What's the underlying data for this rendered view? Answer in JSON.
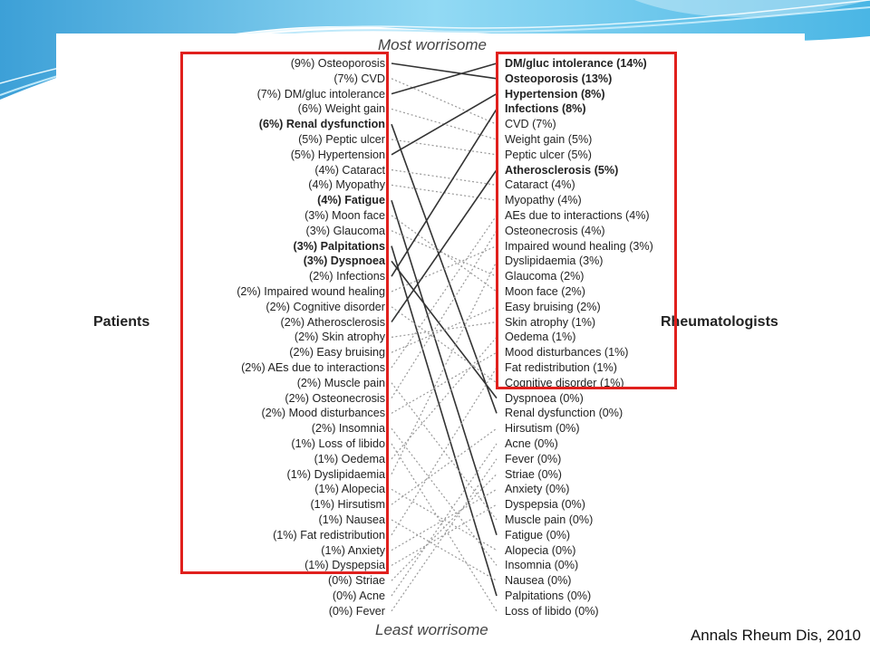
{
  "header": {
    "top": "Most worrisome",
    "bottom": "Least worrisome"
  },
  "side_labels": {
    "left": "Patients",
    "right": "Rheumatologists"
  },
  "citation": "Annals Rheum Dis, 2010",
  "colors": {
    "highlight_box": "#e0201d",
    "solid_line": "#333333",
    "dotted_line": "#999999",
    "header_wave": "#3fb6e4"
  },
  "patients": [
    {
      "text": "(9%) Osteoporosis",
      "bold": false
    },
    {
      "text": "(7%) CVD",
      "bold": false
    },
    {
      "text": "(7%) DM/gluc intolerance",
      "bold": false
    },
    {
      "text": "(6%) Weight gain",
      "bold": false
    },
    {
      "text": "(6%) Renal dysfunction",
      "bold": true
    },
    {
      "text": "(5%) Peptic ulcer",
      "bold": false
    },
    {
      "text": "(5%) Hypertension",
      "bold": false
    },
    {
      "text": "(4%) Cataract",
      "bold": false
    },
    {
      "text": "(4%) Myopathy",
      "bold": false
    },
    {
      "text": "(4%) Fatigue",
      "bold": true
    },
    {
      "text": "(3%) Moon face",
      "bold": false
    },
    {
      "text": "(3%) Glaucoma",
      "bold": false
    },
    {
      "text": "(3%) Palpitations",
      "bold": true
    },
    {
      "text": "(3%) Dyspnoea",
      "bold": true
    },
    {
      "text": "(2%) Infections",
      "bold": false
    },
    {
      "text": "(2%) Impaired wound healing",
      "bold": false
    },
    {
      "text": "(2%) Cognitive disorder",
      "bold": false
    },
    {
      "text": "(2%) Atherosclerosis",
      "bold": false
    },
    {
      "text": "(2%) Skin atrophy",
      "bold": false
    },
    {
      "text": "(2%) Easy bruising",
      "bold": false
    },
    {
      "text": "(2%) AEs due to interactions",
      "bold": false
    },
    {
      "text": "(2%) Muscle pain",
      "bold": false
    },
    {
      "text": "(2%) Osteonecrosis",
      "bold": false
    },
    {
      "text": "(2%) Mood disturbances",
      "bold": false
    },
    {
      "text": "(2%) Insomnia",
      "bold": false
    },
    {
      "text": "(1%) Loss of libido",
      "bold": false
    },
    {
      "text": "(1%) Oedema",
      "bold": false
    },
    {
      "text": "(1%) Dyslipidaemia",
      "bold": false
    },
    {
      "text": "(1%) Alopecia",
      "bold": false
    },
    {
      "text": "(1%) Hirsutism",
      "bold": false
    },
    {
      "text": "(1%) Nausea",
      "bold": false
    },
    {
      "text": "(1%) Fat redistribution",
      "bold": false
    },
    {
      "text": "(1%) Anxiety",
      "bold": false
    },
    {
      "text": "(1%)  Dyspepsia",
      "bold": false
    },
    {
      "text": "(0%) Striae",
      "bold": false
    },
    {
      "text": "(0%) Acne",
      "bold": false
    },
    {
      "text": "(0%) Fever",
      "bold": false
    }
  ],
  "rheumatologists": [
    {
      "text": "DM/gluc intolerance (14%)",
      "bold": true
    },
    {
      "text": "Osteoporosis (13%)",
      "bold": true
    },
    {
      "text": "Hypertension (8%)",
      "bold": true
    },
    {
      "text": "Infections (8%)",
      "bold": true
    },
    {
      "text": "CVD (7%)",
      "bold": false
    },
    {
      "text": "Weight gain (5%)",
      "bold": false
    },
    {
      "text": "Peptic ulcer (5%)",
      "bold": false
    },
    {
      "text": "Atherosclerosis (5%)",
      "bold": true
    },
    {
      "text": "Cataract (4%)",
      "bold": false
    },
    {
      "text": "Myopathy (4%)",
      "bold": false
    },
    {
      "text": "AEs due to interactions (4%)",
      "bold": false
    },
    {
      "text": "Osteonecrosis (4%)",
      "bold": false
    },
    {
      "text": "Impaired wound healing (3%)",
      "bold": false
    },
    {
      "text": "Dyslipidaemia (3%)",
      "bold": false
    },
    {
      "text": "Glaucoma (2%)",
      "bold": false
    },
    {
      "text": "Moon face (2%)",
      "bold": false
    },
    {
      "text": "Easy bruising (2%)",
      "bold": false
    },
    {
      "text": "Skin atrophy (1%)",
      "bold": false
    },
    {
      "text": "Oedema (1%)",
      "bold": false
    },
    {
      "text": "Mood disturbances (1%)",
      "bold": false
    },
    {
      "text": "Fat redistribution (1%)",
      "bold": false
    },
    {
      "text": "Cognitive disorder (1%)",
      "bold": false
    },
    {
      "text": "Dyspnoea (0%)",
      "bold": false
    },
    {
      "text": "Renal dysfunction (0%)",
      "bold": false
    },
    {
      "text": "Hirsutism (0%)",
      "bold": false
    },
    {
      "text": "Acne (0%)",
      "bold": false
    },
    {
      "text": "Fever (0%)",
      "bold": false
    },
    {
      "text": "Striae (0%)",
      "bold": false
    },
    {
      "text": "Anxiety (0%)",
      "bold": false
    },
    {
      "text": "Dyspepsia (0%)",
      "bold": false
    },
    {
      "text": "Muscle pain (0%)",
      "bold": false
    },
    {
      "text": "Fatigue (0%)",
      "bold": false
    },
    {
      "text": "Alopecia (0%)",
      "bold": false
    },
    {
      "text": "Insomnia (0%)",
      "bold": false
    },
    {
      "text": "Nausea (0%)",
      "bold": false
    },
    {
      "text": "Palpitations (0%)",
      "bold": false
    },
    {
      "text": "Loss of libido (0%)",
      "bold": false
    }
  ],
  "links": [
    {
      "from": 0,
      "to": 1,
      "style": "solid"
    },
    {
      "from": 1,
      "to": 4,
      "style": "dotted"
    },
    {
      "from": 2,
      "to": 0,
      "style": "solid"
    },
    {
      "from": 3,
      "to": 5,
      "style": "dotted"
    },
    {
      "from": 4,
      "to": 23,
      "style": "solid"
    },
    {
      "from": 5,
      "to": 6,
      "style": "dotted"
    },
    {
      "from": 6,
      "to": 2,
      "style": "solid"
    },
    {
      "from": 7,
      "to": 8,
      "style": "dotted"
    },
    {
      "from": 8,
      "to": 9,
      "style": "dotted"
    },
    {
      "from": 9,
      "to": 31,
      "style": "solid"
    },
    {
      "from": 10,
      "to": 15,
      "style": "dotted"
    },
    {
      "from": 11,
      "to": 14,
      "style": "dotted"
    },
    {
      "from": 12,
      "to": 35,
      "style": "solid"
    },
    {
      "from": 13,
      "to": 22,
      "style": "solid"
    },
    {
      "from": 14,
      "to": 3,
      "style": "solid"
    },
    {
      "from": 15,
      "to": 12,
      "style": "dotted"
    },
    {
      "from": 16,
      "to": 21,
      "style": "dotted"
    },
    {
      "from": 17,
      "to": 7,
      "style": "solid"
    },
    {
      "from": 18,
      "to": 17,
      "style": "dotted"
    },
    {
      "from": 19,
      "to": 16,
      "style": "dotted"
    },
    {
      "from": 20,
      "to": 10,
      "style": "dotted"
    },
    {
      "from": 21,
      "to": 30,
      "style": "dotted"
    },
    {
      "from": 22,
      "to": 11,
      "style": "dotted"
    },
    {
      "from": 23,
      "to": 19,
      "style": "dotted"
    },
    {
      "from": 24,
      "to": 33,
      "style": "dotted"
    },
    {
      "from": 25,
      "to": 36,
      "style": "dotted"
    },
    {
      "from": 26,
      "to": 18,
      "style": "dotted"
    },
    {
      "from": 27,
      "to": 13,
      "style": "dotted"
    },
    {
      "from": 28,
      "to": 32,
      "style": "dotted"
    },
    {
      "from": 29,
      "to": 24,
      "style": "dotted"
    },
    {
      "from": 30,
      "to": 34,
      "style": "dotted"
    },
    {
      "from": 31,
      "to": 20,
      "style": "dotted"
    },
    {
      "from": 32,
      "to": 28,
      "style": "dotted"
    },
    {
      "from": 33,
      "to": 29,
      "style": "dotted"
    },
    {
      "from": 34,
      "to": 27,
      "style": "dotted"
    },
    {
      "from": 35,
      "to": 25,
      "style": "dotted"
    },
    {
      "from": 36,
      "to": 26,
      "style": "dotted"
    }
  ]
}
